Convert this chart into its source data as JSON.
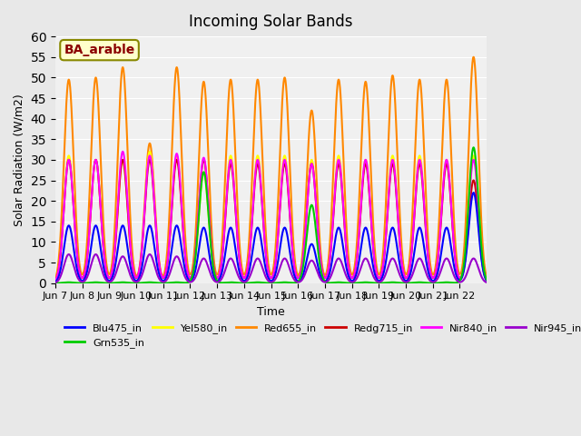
{
  "title": "Incoming Solar Bands",
  "xlabel": "Time",
  "ylabel": "Solar Radiation (W/m2)",
  "annotation": "BA_arable",
  "x_tick_labels": [
    "Jun 7",
    "Jun 8",
    "Jun 9",
    "Jun 10",
    "Jun 11",
    "Jun 12",
    "Jun 13",
    "Jun 14",
    "Jun 15",
    "Jun 16",
    "Jun 17",
    "Jun 18",
    "Jun 19",
    "Jun 20",
    "Jun 21",
    "Jun 22"
  ],
  "ylim": [
    0,
    60
  ],
  "yticks": [
    0,
    5,
    10,
    15,
    20,
    25,
    30,
    35,
    40,
    45,
    50,
    55,
    60
  ],
  "series": {
    "Blu475_in": {
      "color": "#0000ff",
      "linewidth": 1.5
    },
    "Grn535_in": {
      "color": "#00cc00",
      "linewidth": 1.5
    },
    "Yel580_in": {
      "color": "#ffff00",
      "linewidth": 1.5
    },
    "Red655_in": {
      "color": "#ff8800",
      "linewidth": 1.5
    },
    "Redg715_in": {
      "color": "#cc0000",
      "linewidth": 1.5
    },
    "Nir840_in": {
      "color": "#ff00ff",
      "linewidth": 1.5
    },
    "Nir945_in": {
      "color": "#9900cc",
      "linewidth": 1.5
    }
  },
  "peaks_blu": [
    14,
    14,
    14,
    14,
    14,
    13.5,
    13.5,
    13.5,
    13.5,
    9.5,
    13.5,
    13.5,
    13.5,
    13.5,
    13.5,
    22
  ],
  "peaks_grn": [
    0.2,
    0.2,
    0.2,
    0.2,
    0.2,
    27,
    0.2,
    0.2,
    0.2,
    19,
    0.2,
    0.2,
    0.2,
    0.2,
    0.2,
    33
  ],
  "peaks_yel": [
    31,
    30,
    30,
    32,
    31,
    27,
    31,
    31,
    31,
    30,
    31,
    30,
    31,
    31,
    30,
    31
  ],
  "peaks_red": [
    49.5,
    50,
    52.5,
    34,
    52.5,
    49,
    49.5,
    49.5,
    50,
    42,
    49.5,
    49,
    50.5,
    49.5,
    49.5,
    55
  ],
  "peaks_redg": [
    30,
    30,
    30,
    30,
    30,
    30,
    29,
    29,
    29,
    29,
    29,
    29,
    29,
    29,
    29,
    25
  ],
  "peaks_nir840": [
    30,
    30,
    32,
    31,
    31.5,
    30.5,
    30,
    30,
    30,
    29,
    30,
    30,
    30,
    30,
    30,
    30
  ],
  "peaks_nir945": [
    7,
    7,
    6.5,
    7,
    6.5,
    6,
    6,
    6,
    6,
    5.5,
    6,
    6,
    6,
    6,
    6,
    6
  ],
  "days": 16,
  "pts_per_day": 100,
  "background_color": "#e8e8e8",
  "plot_bg_color": "#f0f0f0",
  "grid_color": "#ffffff",
  "legend_bg": "#ffffcc",
  "legend_edge": "#888800",
  "annotation_color": "#8B0000"
}
